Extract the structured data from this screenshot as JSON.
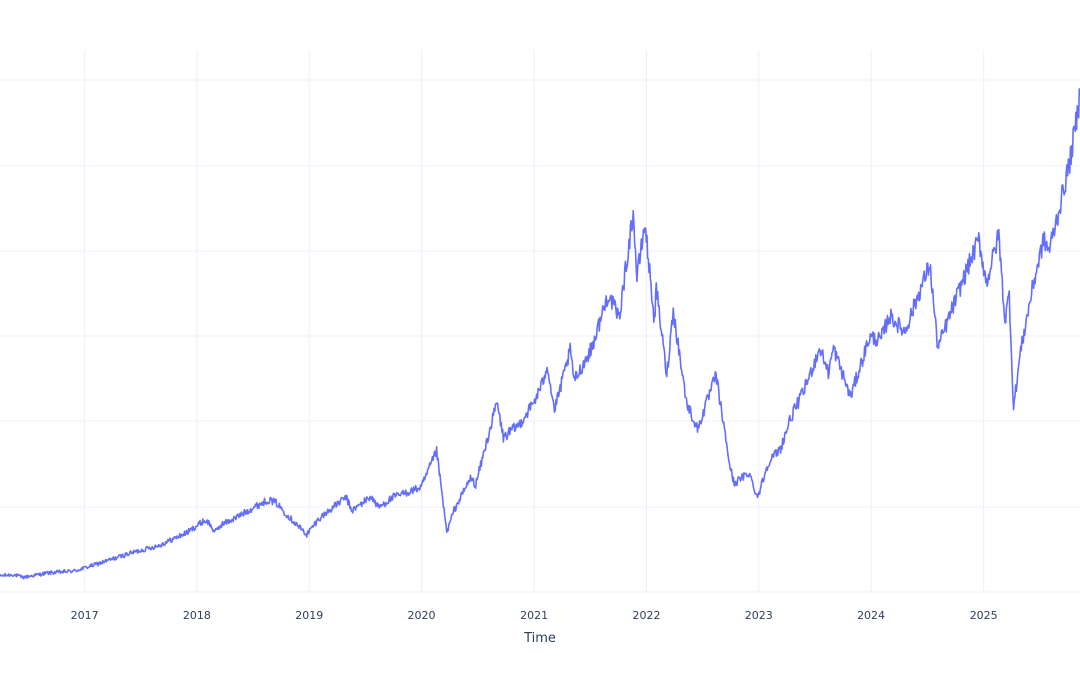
{
  "colors": {
    "series": "#636efa",
    "grid": "#ebf0f8",
    "text": "#2a3f5f",
    "background": "#ffffff"
  },
  "chart_data": {
    "type": "line",
    "title": "",
    "xlabel": "Time",
    "ylabel": "",
    "grid": true,
    "legend": "none",
    "x_ticks": [
      "2017",
      "2018",
      "2019",
      "2020",
      "2021",
      "2022",
      "2023",
      "2024",
      "2025"
    ],
    "xlim": [
      "2016-04-01",
      "2025-11-10"
    ],
    "ylim": [
      0,
      100
    ],
    "series": [
      {
        "x": [
          "2016-04-01",
          "2016-05-15",
          "2016-06-15",
          "2016-09-01",
          "2016-12-01",
          "2017-03-01",
          "2017-06-01",
          "2017-09-01",
          "2017-12-01",
          "2018-01-25",
          "2018-02-08",
          "2018-03-01",
          "2018-03-20",
          "2018-05-01",
          "2018-07-01",
          "2018-08-20",
          "2018-09-15",
          "2018-10-25",
          "2018-12-24",
          "2019-02-01",
          "2019-04-30",
          "2019-05-20",
          "2019-07-20",
          "2019-08-15",
          "2019-10-01",
          "2019-12-31",
          "2020-02-19",
          "2020-03-23",
          "2020-04-15",
          "2020-06-08",
          "2020-06-25",
          "2020-09-02",
          "2020-09-23",
          "2020-11-15",
          "2020-12-31",
          "2021-01-28",
          "2021-02-12",
          "2021-03-08",
          "2021-04-28",
          "2021-05-12",
          "2021-07-07",
          "2021-08-30",
          "2021-10-04",
          "2021-11-19",
          "2021-12-01",
          "2021-12-27",
          "2022-01-27",
          "2022-02-02",
          "2022-03-08",
          "2022-03-29",
          "2022-05-11",
          "2022-06-16",
          "2022-08-15",
          "2022-09-30",
          "2022-10-13",
          "2022-11-30",
          "2022-12-28",
          "2023-02-02",
          "2023-03-13",
          "2023-04-14",
          "2023-05-30",
          "2023-07-19",
          "2023-08-15",
          "2023-09-01",
          "2023-10-26",
          "2023-12-27",
          "2024-02-01",
          "2024-03-01",
          "2024-04-19",
          "2024-07-10",
          "2024-08-05",
          "2024-09-06",
          "2024-11-11",
          "2024-12-16",
          "2025-01-10",
          "2025-02-19",
          "2025-03-11",
          "2025-03-25",
          "2025-04-08",
          "2025-05-01",
          "2025-06-10",
          "2025-07-15",
          "2025-08-01",
          "2025-09-01",
          "2025-10-10",
          "2025-11-01",
          "2025-11-10"
        ],
        "values": [
          3.0,
          3.2,
          2.7,
          3.5,
          3.9,
          5.5,
          7.2,
          8.6,
          11.0,
          13.2,
          12.8,
          11.0,
          12.4,
          13.5,
          15.5,
          17.0,
          16.5,
          14.0,
          10.6,
          13.5,
          17.5,
          15.0,
          17.6,
          15.6,
          17.5,
          19.3,
          26.0,
          11.0,
          15.0,
          21.0,
          19.8,
          35.0,
          28.5,
          31.0,
          35.0,
          38.5,
          42.0,
          33.5,
          44.5,
          39.0,
          45.0,
          55.0,
          50.5,
          70.0,
          58.0,
          68.0,
          50.0,
          56.0,
          40.0,
          52.0,
          35.0,
          30.0,
          40.0,
          23.0,
          20.0,
          22.0,
          17.5,
          24.0,
          26.5,
          32.0,
          37.5,
          45.0,
          40.5,
          45.0,
          36.0,
          47.0,
          46.5,
          51.0,
          48.0,
          60.5,
          45.0,
          50.0,
          60.0,
          65.0,
          57.0,
          66.0,
          50.0,
          55.0,
          34.0,
          44.5,
          56.5,
          65.0,
          63.0,
          70.0,
          80.0,
          88.0,
          92.0
        ]
      }
    ]
  }
}
